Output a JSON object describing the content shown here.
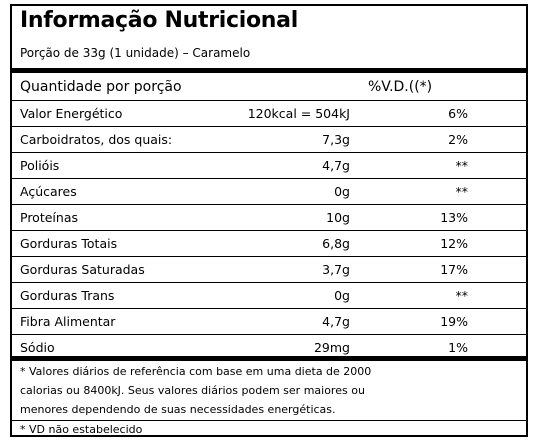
{
  "title": "Informação Nutricional",
  "serving": "Porção de 33g (1 unidade) – Caramelo",
  "header": {
    "label": "Quantidade por porção",
    "vd": "%V.D.((*)"
  },
  "rows": [
    {
      "name": "Valor Energético",
      "qty": "120kcal = 504kJ",
      "pct": "6%"
    },
    {
      "name": "Carboidratos, dos quais:",
      "qty": "7,3g",
      "pct": "2%"
    },
    {
      "name": "Polióis",
      "qty": "4,7g",
      "pct": "**"
    },
    {
      "name": "Açúcares",
      "qty": "0g",
      "pct": "**"
    },
    {
      "name": "Proteínas",
      "qty": "10g",
      "pct": "13%"
    },
    {
      "name": "Gorduras Totais",
      "qty": "6,8g",
      "pct": "12%"
    },
    {
      "name": "Gorduras Saturadas",
      "qty": "3,7g",
      "pct": "17%"
    },
    {
      "name": "Gorduras Trans",
      "qty": "0g",
      "pct": "**"
    },
    {
      "name": "Fibra Alimentar",
      "qty": "4,7g",
      "pct": "19%"
    },
    {
      "name": "Sódio",
      "qty": "29mg",
      "pct": "1%"
    }
  ],
  "footnotes": {
    "line1": "* Valores diários de referência com base em uma dieta de 2000",
    "line2": "calorias ou 8400kJ. Seus valores diários podem ser maiores ou",
    "line3": "menores dependendo de suas necessidades energéticas.",
    "line4": "* VD não estabelecido"
  }
}
